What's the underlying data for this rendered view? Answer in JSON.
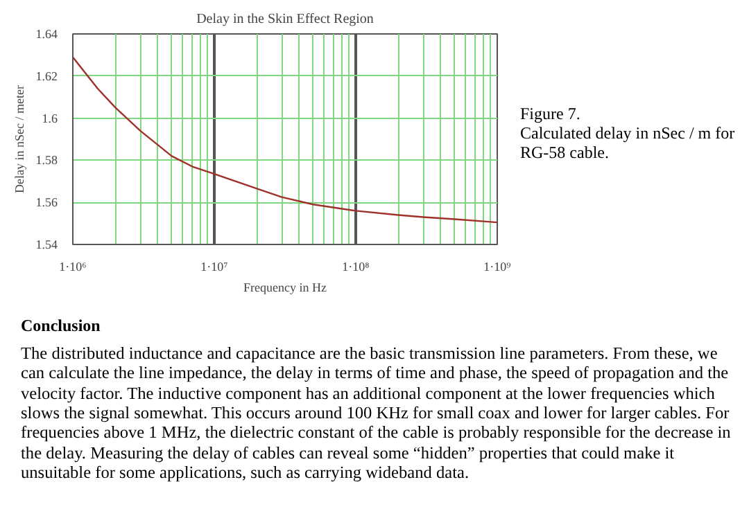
{
  "chart_data": {
    "type": "line",
    "title": "Delay in the Skin Effect Region",
    "xlabel": "Frequency in Hz",
    "ylabel": "Delay in nSec / meter",
    "x": [
      1000000,
      1500000,
      2000000,
      3000000,
      5000000,
      7000000,
      10000000,
      20000000,
      30000000,
      50000000,
      100000000,
      200000000,
      300000000,
      500000000,
      1000000000
    ],
    "series": [
      {
        "color": "#a0302a",
        "values": [
          1.629,
          1.614,
          1.605,
          1.594,
          1.582,
          1.577,
          1.5735,
          1.5665,
          1.5625,
          1.559,
          1.556,
          1.554,
          1.553,
          1.552,
          1.5505
        ]
      }
    ],
    "xlim": [
      1000000,
      1000000000
    ],
    "ylim": [
      1.54,
      1.64
    ],
    "xticks": [
      {
        "value": 1000000,
        "label": "1·10⁶"
      },
      {
        "value": 10000000,
        "label": "1·10⁷"
      },
      {
        "value": 100000000,
        "label": "1·10⁸"
      },
      {
        "value": 1000000000,
        "label": "1·10⁹"
      }
    ],
    "yticks": [
      {
        "value": 1.54,
        "label": "1.54"
      },
      {
        "value": 1.56,
        "label": "1.56"
      },
      {
        "value": 1.58,
        "label": "1.58"
      },
      {
        "value": 1.6,
        "label": "1.6"
      },
      {
        "value": 1.62,
        "label": "1.62"
      },
      {
        "value": 1.64,
        "label": "1.64"
      }
    ],
    "log": "x",
    "grid": true,
    "marker": "none",
    "line_style": "solid",
    "annotations": [
      "Figure 7.",
      "Calculated  delay in nSec / m for RG-58 cable.",
      "Conclusion",
      "The distributed inductance and capacitance are the basic transmission line parameters.  From these, we can calculate the line impedance, the delay in terms of time and phase, the speed of propagation and the velocity factor.  The inductive component has an additional component at the lower frequencies which slows the signal somewhat. This occurs around 100 KHz for small coax and lower for larger cables. For frequencies above 1 MHz, the dielectric constant of the cable is probably responsible for the decrease in the delay.  Measuring the delay of cables can reveal some “hidden” properties that could make it unsuitable for some applications, such as carrying wideband data."
    ]
  }
}
